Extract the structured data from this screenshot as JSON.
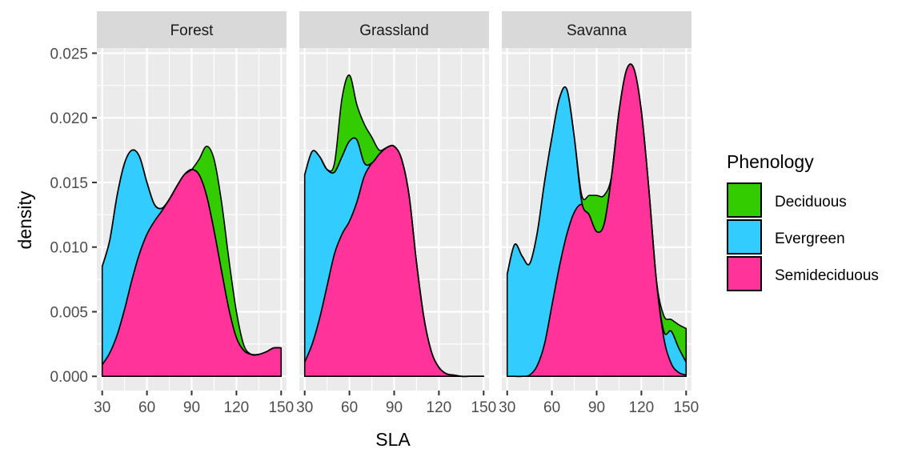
{
  "chart_data": {
    "type": "area",
    "subtype": "stacked-density",
    "title": "",
    "xlabel": "SLA",
    "ylabel": "density",
    "xlim": [
      26.4,
      153.6
    ],
    "ylim": [
      -0.0011,
      0.0254
    ],
    "x_ticks": [
      30,
      60,
      90,
      120,
      150
    ],
    "x_tick_labels": [
      "30",
      "60",
      "90",
      "120",
      "150"
    ],
    "y_ticks": [
      0.0,
      0.005,
      0.01,
      0.015,
      0.02,
      0.025
    ],
    "y_tick_labels": [
      "0.000",
      "0.005",
      "0.010",
      "0.015",
      "0.020",
      "0.025"
    ],
    "grid": true,
    "legend": {
      "title": "Phenology",
      "position": "right",
      "entries": [
        {
          "name": "Deciduous",
          "color": "#33CC00"
        },
        {
          "name": "Evergreen",
          "color": "#33CCFF"
        },
        {
          "name": "Semideciduous",
          "color": "#FF3399"
        }
      ]
    },
    "stack_order_bottom_to_top": [
      "Semideciduous",
      "Evergreen",
      "Deciduous"
    ],
    "x": [
      30,
      35,
      40,
      45,
      50,
      55,
      60,
      65,
      70,
      75,
      80,
      85,
      90,
      95,
      100,
      105,
      110,
      115,
      120,
      125,
      130,
      135,
      140,
      145,
      150
    ],
    "facets": [
      {
        "name": "Forest",
        "series": [
          {
            "name": "Semideciduous",
            "values": [
              0.0009,
              0.0018,
              0.0032,
              0.0052,
              0.0075,
              0.0095,
              0.011,
              0.012,
              0.0128,
              0.0137,
              0.0147,
              0.0156,
              0.016,
              0.0156,
              0.014,
              0.0113,
              0.0082,
              0.0052,
              0.003,
              0.002,
              0.0017,
              0.0017,
              0.0019,
              0.0022,
              0.0022
            ]
          },
          {
            "name": "Evergreen",
            "values": [
              0.0076,
              0.0087,
              0.0108,
              0.0113,
              0.01,
              0.0075,
              0.004,
              0.0013,
              0.0002,
              0,
              0,
              0,
              0,
              0,
              0,
              0,
              0,
              0,
              0,
              0,
              0,
              0,
              0,
              0,
              0
            ]
          },
          {
            "name": "Deciduous",
            "values": [
              0,
              0,
              0,
              0,
              0,
              0,
              0,
              0,
              0,
              0,
              0,
              0,
              0,
              0.0012,
              0.0038,
              0.0055,
              0.0053,
              0.0038,
              0.002,
              0.0004,
              0,
              0,
              0,
              0,
              0
            ]
          }
        ]
      },
      {
        "name": "Grassland",
        "series": [
          {
            "name": "Semideciduous",
            "values": [
              0.0011,
              0.0025,
              0.0045,
              0.007,
              0.0095,
              0.011,
              0.012,
              0.0135,
              0.0155,
              0.0165,
              0.0172,
              0.0177,
              0.0178,
              0.0168,
              0.014,
              0.0088,
              0.0045,
              0.0019,
              0.0007,
              0.0002,
              0.0001,
              0,
              0,
              0,
              0
            ]
          },
          {
            "name": "Evergreen",
            "values": [
              0.0145,
              0.0149,
              0.0125,
              0.009,
              0.0063,
              0.006,
              0.0062,
              0.0048,
              0.001,
              0,
              0,
              0,
              0,
              0,
              0,
              0,
              0,
              0,
              0,
              0,
              0,
              0,
              0,
              0,
              0
            ]
          },
          {
            "name": "Deciduous",
            "values": [
              0,
              0,
              0,
              0,
              0.0007,
              0.0045,
              0.0051,
              0.0027,
              0.003,
              0.002,
              0.0003,
              0,
              0,
              0,
              0,
              0,
              0,
              0,
              0,
              0,
              0,
              0,
              0,
              0,
              0
            ]
          }
        ]
      },
      {
        "name": "Savanna",
        "series": [
          {
            "name": "Semideciduous",
            "values": [
              0,
              0,
              0,
              0.0001,
              0.0008,
              0.0025,
              0.0055,
              0.0085,
              0.011,
              0.0127,
              0.0133,
              0.0125,
              0.0112,
              0.0118,
              0.0155,
              0.0205,
              0.0237,
              0.0238,
              0.0205,
              0.0145,
              0.0075,
              0.003,
              0.001,
              0.0003,
              0.0001
            ]
          },
          {
            "name": "Evergreen",
            "values": [
              0.0079,
              0.0102,
              0.0093,
              0.0086,
              0.0102,
              0.0125,
              0.013,
              0.013,
              0.0112,
              0.0058,
              0.0002,
              0,
              0,
              0,
              0,
              0,
              0,
              0,
              0,
              0,
              0,
              0.0005,
              0.0025,
              0.0019,
              0.001
            ]
          },
          {
            "name": "Deciduous",
            "values": [
              0,
              0,
              0,
              0,
              0,
              0,
              0,
              0,
              0,
              0,
              0.0005,
              0.0015,
              0.0028,
              0.0022,
              0,
              0,
              0,
              0,
              0,
              0,
              0,
              0.0012,
              0.0009,
              0.0018,
              0.0026
            ]
          }
        ]
      }
    ]
  }
}
